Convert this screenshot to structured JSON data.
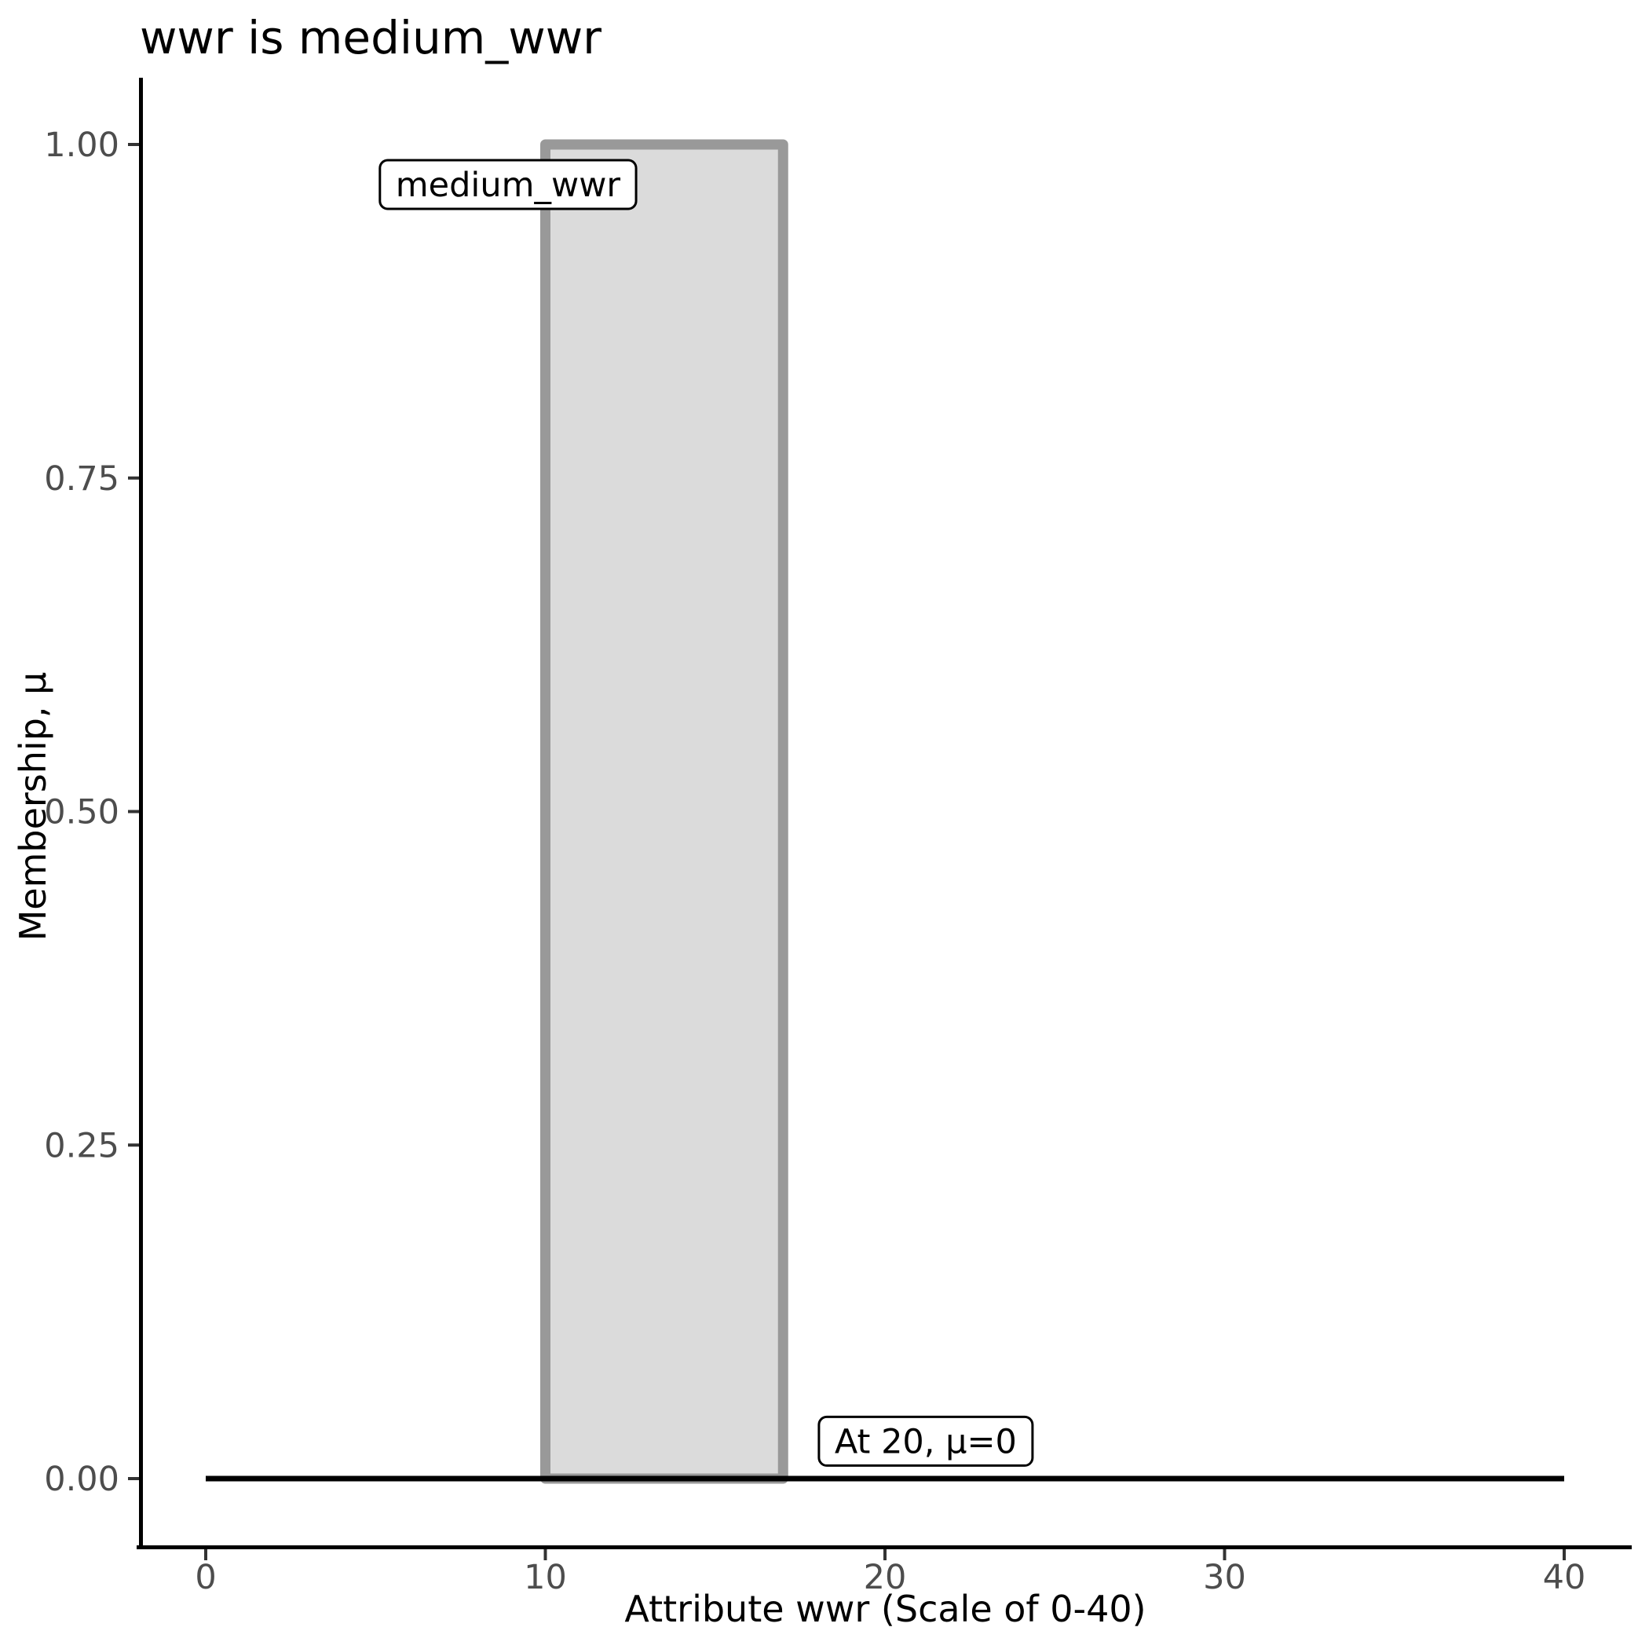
{
  "chart_data": {
    "type": "area",
    "title": "wwr is medium_wwr",
    "xlabel": "Attribute wwr (Scale of 0-40)",
    "ylabel": "Membership, μ",
    "xlim": [
      0,
      40
    ],
    "ylim": [
      0,
      1
    ],
    "grid": "off",
    "legend": "none",
    "x_ticks": {
      "values": [
        0,
        10,
        20,
        30,
        40
      ],
      "labels": [
        "0",
        "10",
        "20",
        "30",
        "40"
      ]
    },
    "y_ticks": {
      "values": [
        0,
        0.25,
        0.5,
        0.75,
        1
      ],
      "labels": [
        "0.00",
        "0.25",
        "0.50",
        "0.75",
        "1.00"
      ]
    },
    "fuzzy_set": {
      "name": "medium_wwr",
      "shape": "rectangle",
      "x_start": 10,
      "x_end": 17,
      "membership_height": 1.0,
      "fill": "#dbdbdb",
      "stroke": "#999999"
    },
    "baseline_series": {
      "name": "membership-at-zero",
      "x": [
        0,
        40
      ],
      "mu": [
        0,
        0
      ],
      "color": "#000000"
    },
    "annotations": [
      {
        "text": "medium_wwr",
        "x": 8.9,
        "mu": 0.97
      },
      {
        "text": "At 20, μ=0",
        "x": 21.2,
        "mu": 0.028
      }
    ],
    "colors": {
      "axis_line": "#000000",
      "tick_mark": "#333333",
      "tick_label": "#4d4d4d",
      "title": "#000000",
      "annotation_bg": "#ffffff",
      "annotation_border": "#000000"
    }
  }
}
